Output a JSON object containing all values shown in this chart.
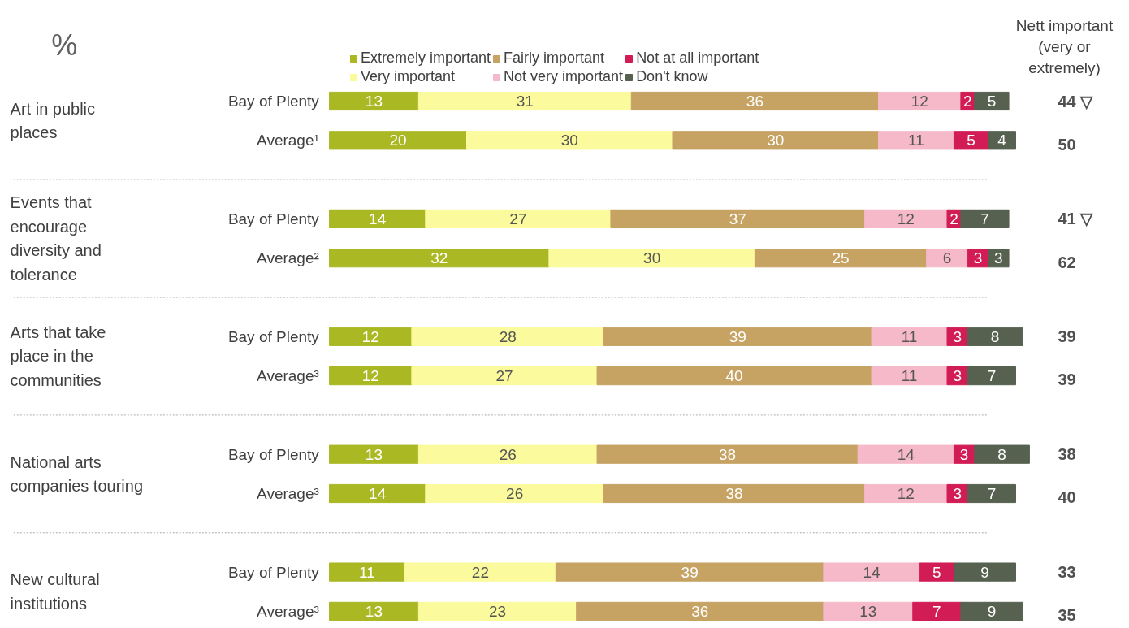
{
  "chart_data": {
    "type": "bar",
    "orientation": "horizontal",
    "stacked": true,
    "data_labels": true,
    "legend": "top",
    "tick_labels": "y",
    "categories": [
      "Bay of Plenty",
      "Average¹",
      "Bay of Plenty",
      "Average²",
      "Bay of Plenty",
      "Average³",
      "Bay of Plenty",
      "Average³",
      "Bay of Plenty",
      "Average³"
    ],
    "series": [
      {
        "name": "Extremely important",
        "color": "#a9b823",
        "values": [
          13,
          20,
          14,
          32,
          12,
          12,
          13,
          14,
          11,
          13
        ]
      },
      {
        "name": "Very important",
        "color": "#fbfa9c",
        "values": [
          31,
          30,
          27,
          30,
          28,
          27,
          26,
          26,
          22,
          23
        ]
      },
      {
        "name": "Fairly important",
        "color": "#c6a263",
        "values": [
          36,
          30,
          37,
          25,
          39,
          40,
          38,
          38,
          39,
          36
        ]
      },
      {
        "name": "Not very important",
        "color": "#f5b9c9",
        "values": [
          12,
          11,
          12,
          6,
          11,
          11,
          14,
          12,
          14,
          13
        ]
      },
      {
        "name": "Not at all important",
        "color": "#d11c55",
        "values": [
          2,
          5,
          2,
          3,
          3,
          3,
          3,
          3,
          5,
          7
        ]
      },
      {
        "name": "Don't know",
        "color": "#56614f",
        "values": [
          5,
          4,
          7,
          3,
          8,
          7,
          8,
          7,
          9,
          9
        ]
      }
    ],
    "annotations": [
      "%",
      "Art in public places",
      "Events that encourage diversity and tolerance",
      "Arts that take place in the communities",
      "National arts companies touring",
      "New cultural institutions",
      "Nett important (very or extremely)",
      "44 ▽",
      "50",
      "41 ▽",
      "62",
      "39",
      "39",
      "38",
      "40",
      "33",
      "35"
    ]
  }
}
